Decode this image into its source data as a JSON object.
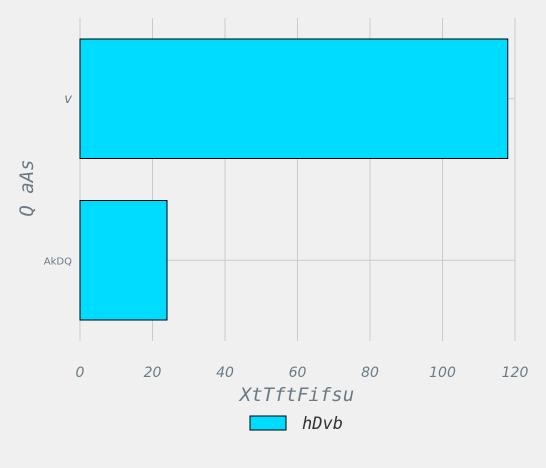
{
  "chart_data": {
    "type": "bar",
    "orientation": "horizontal",
    "categories": [
      "AkDQ",
      "v"
    ],
    "series": [
      {
        "name": "hDvb",
        "values": [
          24,
          118
        ],
        "color": "#00dcff"
      }
    ],
    "xlabel": "XtTftFifsu",
    "ylabel": "Q  aAs",
    "xlim": [
      0,
      120
    ],
    "xticks": [
      0,
      20,
      40,
      60,
      80,
      100,
      120
    ],
    "grid": true,
    "legend_position": "bottom-center"
  }
}
